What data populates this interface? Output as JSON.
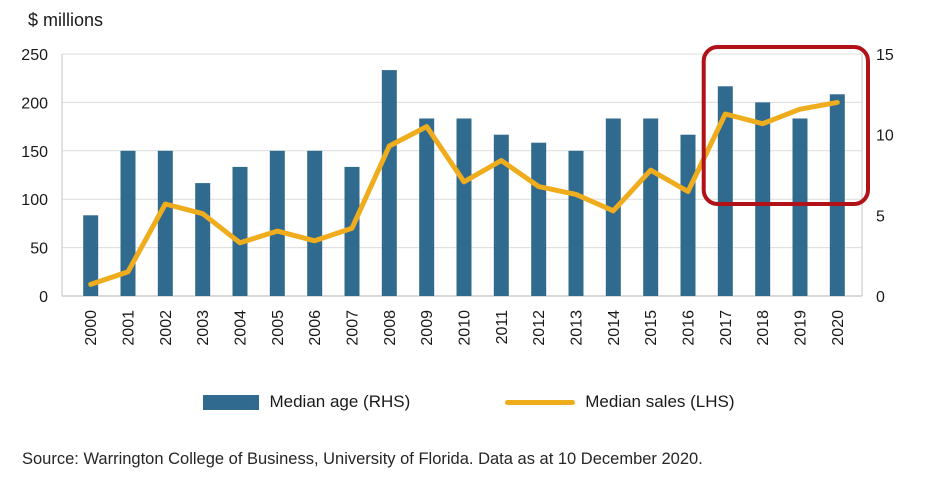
{
  "chart_data": {
    "type": "combo",
    "title": "$ millions",
    "categories": [
      "2000",
      "2001",
      "2002",
      "2003",
      "2004",
      "2005",
      "2006",
      "2007",
      "2008",
      "2009",
      "2010",
      "2011",
      "2012",
      "2013",
      "2014",
      "2015",
      "2016",
      "2017",
      "2018",
      "2019",
      "2020"
    ],
    "series": [
      {
        "name": "Median age (RHS)",
        "type": "bar",
        "axis": "right",
        "color": "#306a8e",
        "values": [
          5,
          9,
          9,
          7,
          8,
          9,
          9,
          8,
          14,
          11,
          11,
          10,
          9.5,
          9,
          11,
          11,
          10,
          13,
          12,
          11,
          12.5
        ]
      },
      {
        "name": "Median sales (LHS)",
        "type": "line",
        "axis": "left",
        "color": "#efad1e",
        "values": [
          12,
          25,
          95,
          85,
          55,
          67,
          57,
          70,
          155,
          175,
          118,
          140,
          113,
          105,
          88,
          130,
          108,
          188,
          178,
          193,
          200
        ]
      }
    ],
    "left_axis": {
      "label": "$ millions",
      "ticks": [
        0,
        50,
        100,
        150,
        200,
        250
      ],
      "max": 250
    },
    "right_axis": {
      "ticks": [
        0,
        5,
        10,
        15
      ],
      "max": 15
    },
    "grid": true,
    "legend_position": "bottom",
    "highlight": {
      "from": "2017",
      "to": "2020",
      "bottom_at_lhs_value": 95,
      "color": "#b11218"
    }
  },
  "source_note": "Source: Warrington College of Business, University of Florida. Data as at 10 December 2020."
}
